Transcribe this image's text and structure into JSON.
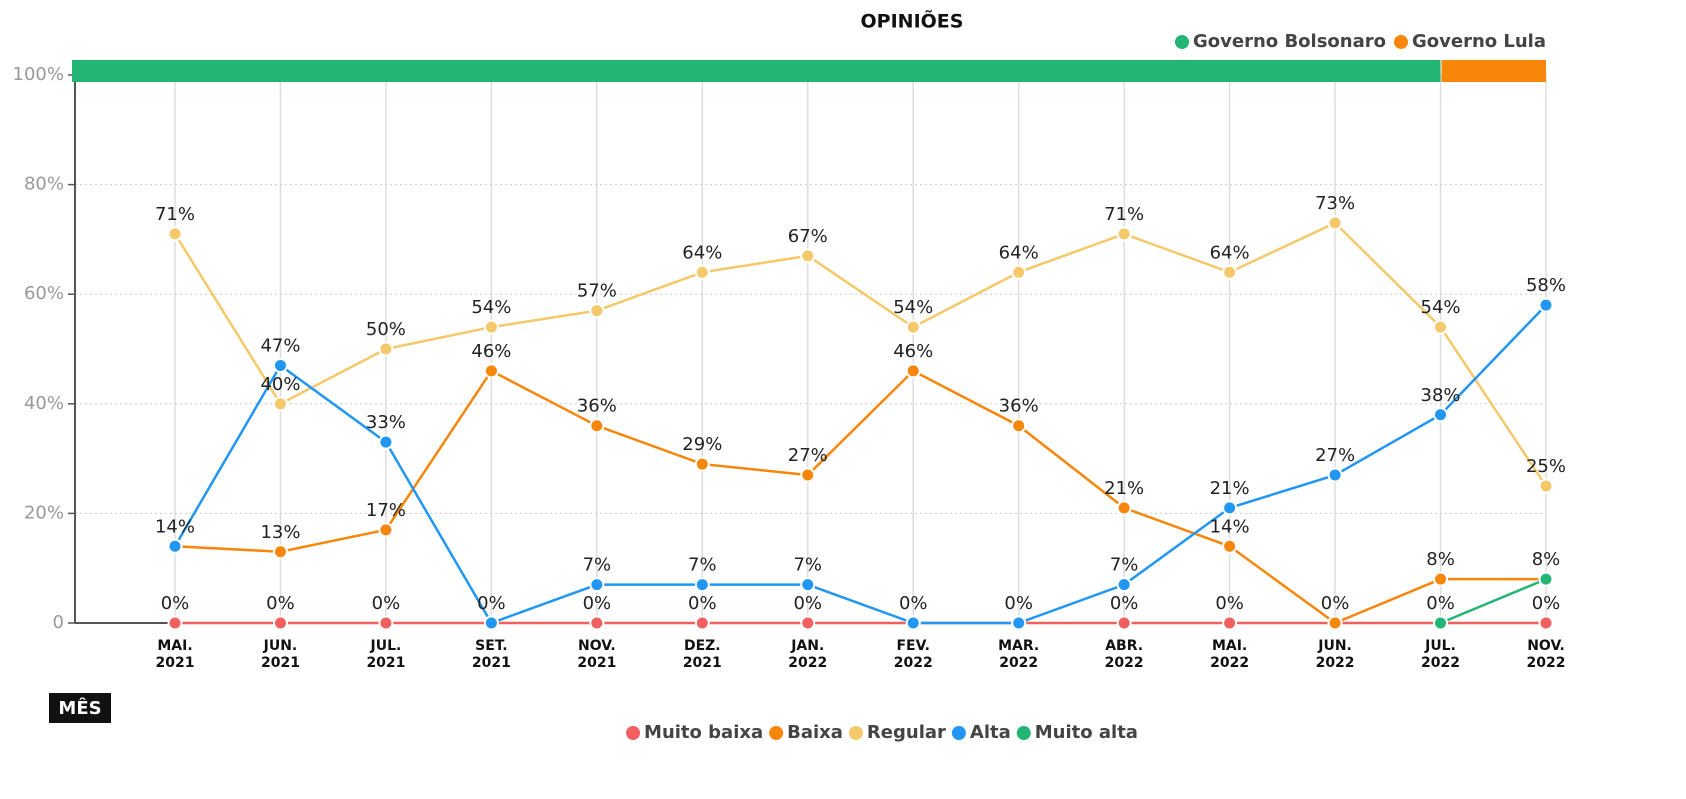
{
  "chart_data": {
    "type": "line",
    "title": "OPINIÕES",
    "x_label": "MÊS",
    "categories": [
      "MAI. 2021",
      "JUN. 2021",
      "JUL. 2021",
      "SET. 2021",
      "NOV. 2021",
      "DEZ. 2021",
      "JAN. 2022",
      "FEV. 2022",
      "MAR. 2022",
      "ABR. 2022",
      "MAI. 2022",
      "JUN. 2022",
      "JUL. 2022",
      "NOV. 2022"
    ],
    "periods": [
      {
        "name": "Governo Bolsonaro",
        "color": "#22b573",
        "from": "MAI. 2021",
        "to": "JUL. 2022"
      },
      {
        "name": "Governo Lula",
        "color": "#f7860b",
        "from": "JUL. 2022",
        "to": "NOV. 2022"
      }
    ],
    "series": [
      {
        "name": "Muito baixa",
        "color": "#f15f5f",
        "values": [
          0,
          0,
          0,
          0,
          0,
          0,
          0,
          0,
          0,
          0,
          0,
          0,
          0,
          0
        ],
        "value_labels": [
          "0%",
          "0%",
          "0%",
          "0%",
          "0%",
          "0%",
          "0%",
          "0%",
          "0%",
          "0%",
          "0%",
          "0%",
          "0%",
          "0%"
        ]
      },
      {
        "name": "Baixa",
        "color": "#f7860b",
        "values": [
          14,
          13,
          17,
          46,
          36,
          29,
          27,
          46,
          36,
          21,
          14,
          0,
          8,
          8
        ],
        "value_labels": [
          "14%",
          "13%",
          "17%",
          "46%",
          "36%",
          "29%",
          "27%",
          "46%",
          "36%",
          "21%",
          "14%",
          null,
          "8%",
          "8%"
        ]
      },
      {
        "name": "Regular",
        "color": "#f5c96a",
        "values": [
          71,
          40,
          50,
          54,
          57,
          64,
          67,
          54,
          64,
          71,
          64,
          73,
          54,
          25
        ],
        "value_labels": [
          "71%",
          "40%",
          "50%",
          "54%",
          "57%",
          "64%",
          "67%",
          "54%",
          "64%",
          "71%",
          "64%",
          "73%",
          "54%",
          "25%"
        ]
      },
      {
        "name": "Alta",
        "color": "#2196f3",
        "values": [
          14,
          47,
          33,
          0,
          7,
          7,
          7,
          0,
          0,
          7,
          21,
          27,
          38,
          58
        ],
        "value_labels": [
          null,
          "47%",
          "33%",
          null,
          "7%",
          "7%",
          "7%",
          null,
          null,
          "7%",
          "21%",
          "27%",
          "38%",
          "58%"
        ]
      },
      {
        "name": "Muito alta",
        "color": "#22b573",
        "values": [
          null,
          null,
          null,
          null,
          null,
          null,
          null,
          null,
          null,
          null,
          null,
          null,
          0,
          8
        ],
        "value_labels": [
          null,
          null,
          null,
          null,
          null,
          null,
          null,
          null,
          null,
          null,
          null,
          null,
          null,
          null
        ]
      }
    ],
    "ylim": [
      0,
      100
    ],
    "yticks": [
      0,
      {
        "value": 20,
        "label": "20%"
      },
      {
        "value": 40,
        "label": "40%"
      },
      {
        "value": 60,
        "label": "60%"
      },
      {
        "value": 80,
        "label": "80%"
      },
      {
        "value": 100,
        "label": "100%"
      }
    ],
    "grid": true
  }
}
